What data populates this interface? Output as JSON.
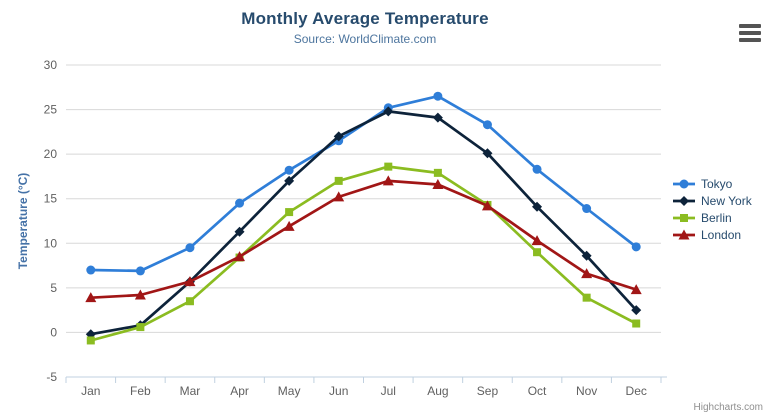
{
  "header": {
    "title": "Monthly Average Temperature",
    "subtitle": "Source: WorldClimate.com"
  },
  "credits": {
    "label": "Highcharts.com"
  },
  "export_menu": {
    "icon": "hamburger-menu-icon"
  },
  "styling": {
    "title_color": "#274b6d",
    "subtitle_color": "#4d759e",
    "axis_title_color": "#4572a7",
    "axis_label_color": "#606060",
    "grid_color": "#d8d8d8",
    "axis_line_color": "#c0d0e0",
    "credits_color": "#8f8f8f"
  },
  "chart_data": {
    "type": "line",
    "title": "Monthly Average Temperature",
    "subtitle": "Source: WorldClimate.com",
    "categories": [
      "Jan",
      "Feb",
      "Mar",
      "Apr",
      "May",
      "Jun",
      "Jul",
      "Aug",
      "Sep",
      "Oct",
      "Nov",
      "Dec"
    ],
    "series": [
      {
        "name": "Tokyo",
        "color": "#2f7ed8",
        "marker": "circle",
        "values": [
          7.0,
          6.9,
          9.5,
          14.5,
          18.2,
          21.5,
          25.2,
          26.5,
          23.3,
          18.3,
          13.9,
          9.6
        ]
      },
      {
        "name": "New York",
        "color": "#0d233a",
        "marker": "diamond",
        "values": [
          -0.2,
          0.8,
          5.7,
          11.3,
          17.0,
          22.0,
          24.8,
          24.1,
          20.1,
          14.1,
          8.6,
          2.5
        ]
      },
      {
        "name": "Berlin",
        "color": "#8bbc21",
        "marker": "square",
        "values": [
          -0.9,
          0.6,
          3.5,
          8.4,
          13.5,
          17.0,
          18.6,
          17.9,
          14.3,
          9.0,
          3.9,
          1.0
        ]
      },
      {
        "name": "London",
        "color": "#a11616",
        "marker": "triangle",
        "values": [
          3.9,
          4.2,
          5.7,
          8.5,
          11.9,
          15.2,
          17.0,
          16.6,
          14.2,
          10.3,
          6.6,
          4.8
        ]
      }
    ],
    "xlabel": "",
    "ylabel": "Temperature (°C)",
    "ylim": [
      -5,
      30
    ],
    "tick_interval": 5,
    "grid": true,
    "legend_position": "right-middle"
  }
}
